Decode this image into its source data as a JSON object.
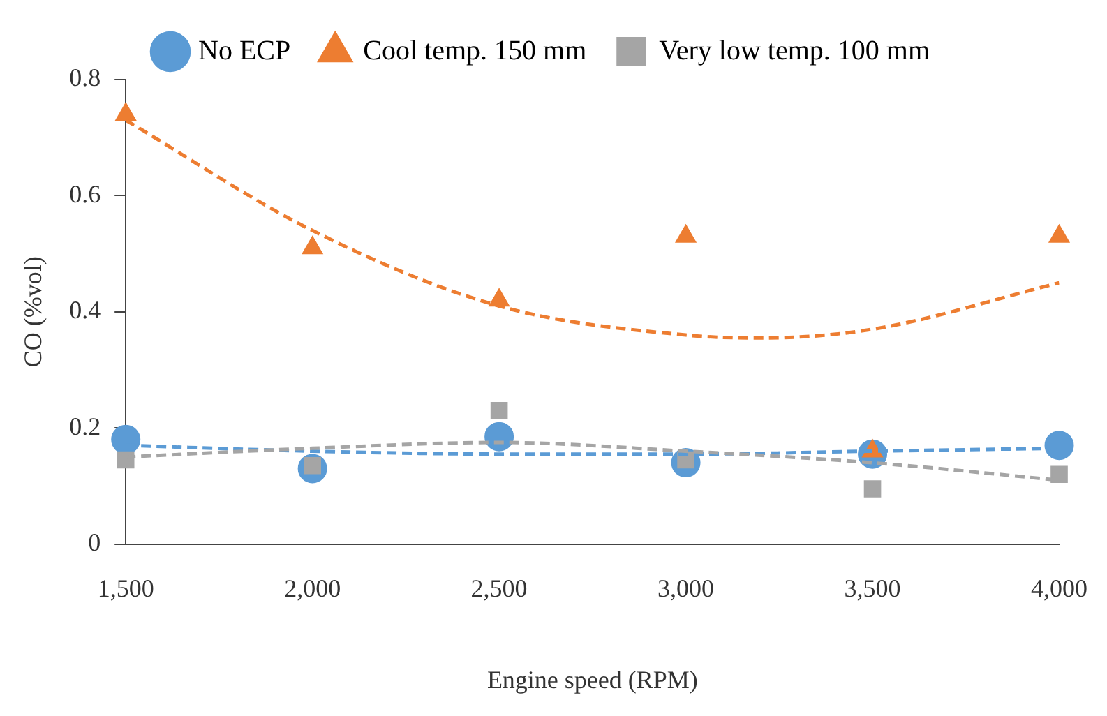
{
  "chart_data": {
    "type": "scatter",
    "xlabel": "Engine speed (RPM)",
    "ylabel": "CO (%vol)",
    "xlim": [
      1500,
      4000
    ],
    "xticks": [
      {
        "value": 1500,
        "label": "1,500"
      },
      {
        "value": 2000,
        "label": "2,000"
      },
      {
        "value": 2500,
        "label": "2,500"
      },
      {
        "value": 3000,
        "label": "3,000"
      },
      {
        "value": 3500,
        "label": "3,500"
      },
      {
        "value": 4000,
        "label": "4,000"
      }
    ],
    "ylim": [
      0,
      0.8
    ],
    "yticks": [
      0,
      0.2,
      0.4,
      0.6,
      0.8
    ],
    "grid": false,
    "legend": "top",
    "x": [
      1500,
      2000,
      2500,
      3000,
      3500,
      4000
    ],
    "series": [
      {
        "type": "line",
        "color": "#5b9bd5",
        "line_style": "dashed",
        "marker": "none",
        "x": [
          1500,
          2000,
          2500,
          3000,
          3500,
          4000
        ],
        "values": [
          0.17,
          0.16,
          0.155,
          0.155,
          0.16,
          0.165
        ]
      },
      {
        "type": "line",
        "color": "#ed7d31",
        "line_style": "dashed",
        "marker": "none",
        "x": [
          1500,
          2000,
          2500,
          3000,
          3200,
          3500,
          4000
        ],
        "values": [
          0.73,
          0.54,
          0.41,
          0.36,
          0.355,
          0.37,
          0.45
        ]
      },
      {
        "type": "line",
        "color": "#a5a5a5",
        "line_style": "dashed",
        "marker": "none",
        "x": [
          1500,
          2000,
          2500,
          3000,
          3500,
          4000
        ],
        "values": [
          0.15,
          0.165,
          0.175,
          0.16,
          0.14,
          0.11
        ]
      },
      {
        "name": "No ECP",
        "color": "#5b9bd5",
        "marker": "circle",
        "values": [
          0.18,
          0.13,
          0.185,
          0.14,
          0.155,
          0.17
        ]
      },
      {
        "name": "Cool temp. 150 mm",
        "color": "#ed7d31",
        "marker": "triangle",
        "values": [
          0.74,
          0.51,
          0.42,
          0.53,
          0.16,
          0.53
        ]
      },
      {
        "name": "Very low temp. 100 mm",
        "color": "#a5a5a5",
        "marker": "square",
        "values": [
          0.145,
          0.135,
          0.23,
          0.145,
          0.095,
          0.12
        ]
      }
    ]
  }
}
